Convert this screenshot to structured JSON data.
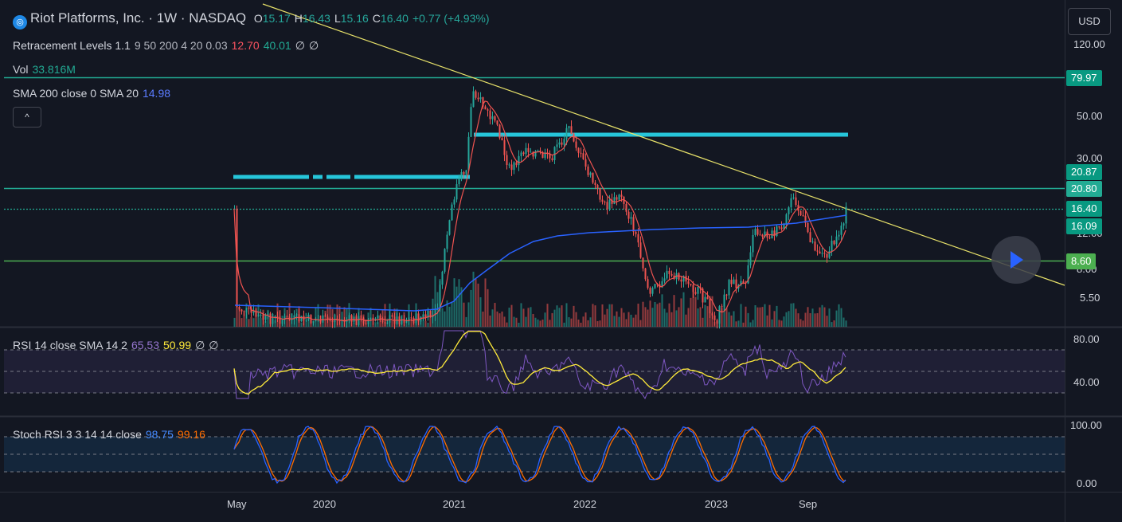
{
  "header": {
    "symbol_title": "Riot Platforms, Inc. · 1W · NASDAQ",
    "open_label": "O",
    "open": "15.17",
    "high_label": "H",
    "high": "16.43",
    "low_label": "L",
    "low": "15.16",
    "close_label": "C",
    "close": "16.40",
    "change": "+0.77 (+4.93%)"
  },
  "indicators": {
    "retracement": {
      "name": "Retracement Levels 1.1",
      "params": "9 50 200 4 20 0.03",
      "value1": "12.70",
      "value2": "40.01",
      "empty1": "∅",
      "empty2": "∅"
    },
    "vol": {
      "name": "Vol",
      "value": "33.816M"
    },
    "sma": {
      "name": "SMA 200 close 0 SMA 20",
      "value": "14.98"
    },
    "rsi": {
      "name": "RSI 14 close SMA 14 2",
      "value1": "65.53",
      "value2": "50.99",
      "empty1": "∅",
      "empty2": "∅"
    },
    "stoch": {
      "name": "Stoch RSI 3 3 14 14 close",
      "k": "98.75",
      "d": "99.16"
    }
  },
  "toolbar": {
    "collapse_glyph": "^",
    "currency": "USD"
  },
  "price_axis": {
    "ticks": [
      "120.00",
      "50.00",
      "30.00",
      "12.00",
      "8.00",
      "5.50"
    ]
  },
  "price_tags": [
    {
      "value": "79.97",
      "color": "#089981"
    },
    {
      "value": "20.87",
      "color": "#089981"
    },
    {
      "value": "20.80",
      "color": "#22ab94"
    },
    {
      "value": "16.40",
      "color": "#089981"
    },
    {
      "value": "16.09",
      "color": "#089981"
    },
    {
      "value": "8.60",
      "color": "#4caf50"
    }
  ],
  "rsi_axis": {
    "ticks": [
      "80.00",
      "40.00"
    ]
  },
  "stoch_axis": {
    "ticks": [
      "100.00",
      "0.00"
    ]
  },
  "time_axis": {
    "ticks": [
      "May",
      "2020",
      "2021",
      "2022",
      "2023",
      "Sep"
    ]
  },
  "colors": {
    "background": "#131722",
    "up": "#26a69a",
    "down": "#ef5350",
    "sma200": "#2962ff",
    "sma20": "#ef5350",
    "trendline": "#e8e26a",
    "hline_teal": "#22ab94",
    "hline_green": "#4caf50",
    "zone": "#26c6da",
    "rsi": "#7e57c2",
    "rsi_ma": "#ffeb3b",
    "stoch_k": "#2962ff",
    "stoch_d": "#ff6d00"
  }
}
